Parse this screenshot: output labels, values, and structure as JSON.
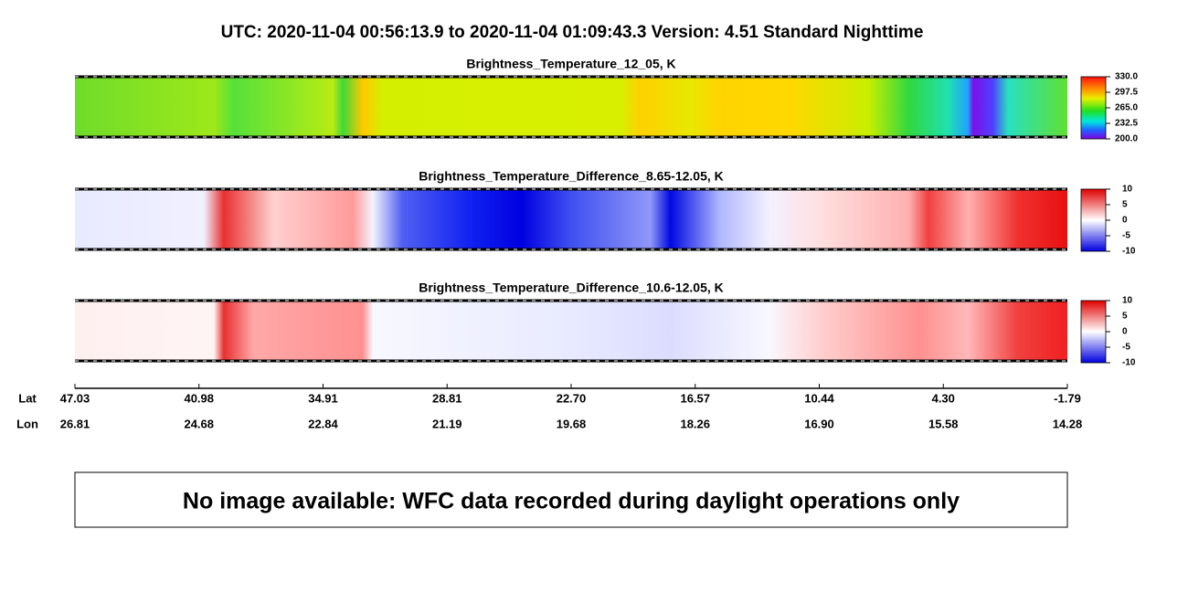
{
  "header": {
    "title": "UTC:  2020-11-04   00:56:13.9  to  2020-11-04   01:09:43.3    Version: 4.51  Standard Nighttime"
  },
  "panels": [
    {
      "title": "Brightness_Temperature_12_05, K",
      "clim": [
        200,
        330
      ],
      "ticks": [
        {
          "value": 330,
          "label": "330.0"
        },
        {
          "value": 297.5,
          "label": "297.5"
        },
        {
          "value": 265,
          "label": "265.0"
        },
        {
          "value": 232.5,
          "label": "232.5"
        },
        {
          "value": 200,
          "label": "200.0"
        }
      ]
    },
    {
      "title": "Brightness_Temperature_Difference_8.65-12.05, K",
      "clim": [
        -10,
        10
      ],
      "ticks": [
        10,
        5,
        0,
        -5,
        -10
      ]
    },
    {
      "title": "Brightness_Temperature_Difference_10.6-12.05, K",
      "clim": [
        -10,
        10
      ],
      "ticks": [
        10,
        5,
        0,
        -5,
        -10
      ]
    }
  ],
  "axis": {
    "lat_label": "Lat",
    "lon_label": "Lon",
    "lat": [
      "47.03",
      "40.98",
      "34.91",
      "28.81",
      "22.70",
      "16.57",
      "10.44",
      "4.30",
      "-1.79"
    ],
    "lon": [
      "26.81",
      "24.68",
      "22.84",
      "21.19",
      "19.68",
      "18.26",
      "16.90",
      "15.58",
      "14.28"
    ]
  },
  "note": "No image available: WFC data recorded during daylight operations only"
}
